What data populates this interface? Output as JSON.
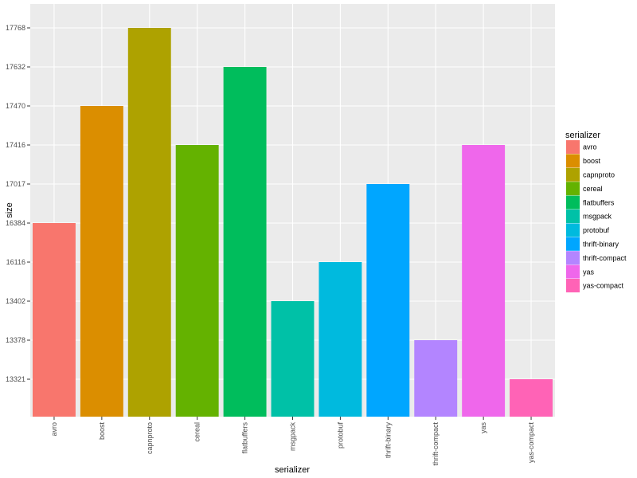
{
  "chart_data": {
    "type": "bar",
    "xlabel": "serializer",
    "ylabel": "size",
    "y_ticks": [
      "13321",
      "13378",
      "13402",
      "16116",
      "16384",
      "17017",
      "17416",
      "17470",
      "17632",
      "17768"
    ],
    "categories": [
      "avro",
      "boost",
      "capnproto",
      "cereal",
      "flatbuffers",
      "msgpack",
      "protobuf",
      "thrift-binary",
      "thrift-compact",
      "yas",
      "yas-compact"
    ],
    "values": [
      "16384",
      "17470",
      "17768",
      "17416",
      "17632",
      "13402",
      "16116",
      "17017",
      "13378",
      "17416",
      "13321"
    ],
    "colors": [
      "#F8766D",
      "#DB8E00",
      "#AEA200",
      "#64B200",
      "#00BD5C",
      "#00C1A7",
      "#00BADE",
      "#00A6FF",
      "#B385FF",
      "#EF67EB",
      "#FF63B6"
    ],
    "legend": {
      "title": "serializer",
      "position": "right",
      "items": [
        "avro",
        "boost",
        "capnproto",
        "cereal",
        "flatbuffers",
        "msgpack",
        "protobuf",
        "thrift-binary",
        "thrift-compact",
        "yas",
        "yas-compact"
      ]
    },
    "background": "#EBEBEB",
    "grid": true
  }
}
